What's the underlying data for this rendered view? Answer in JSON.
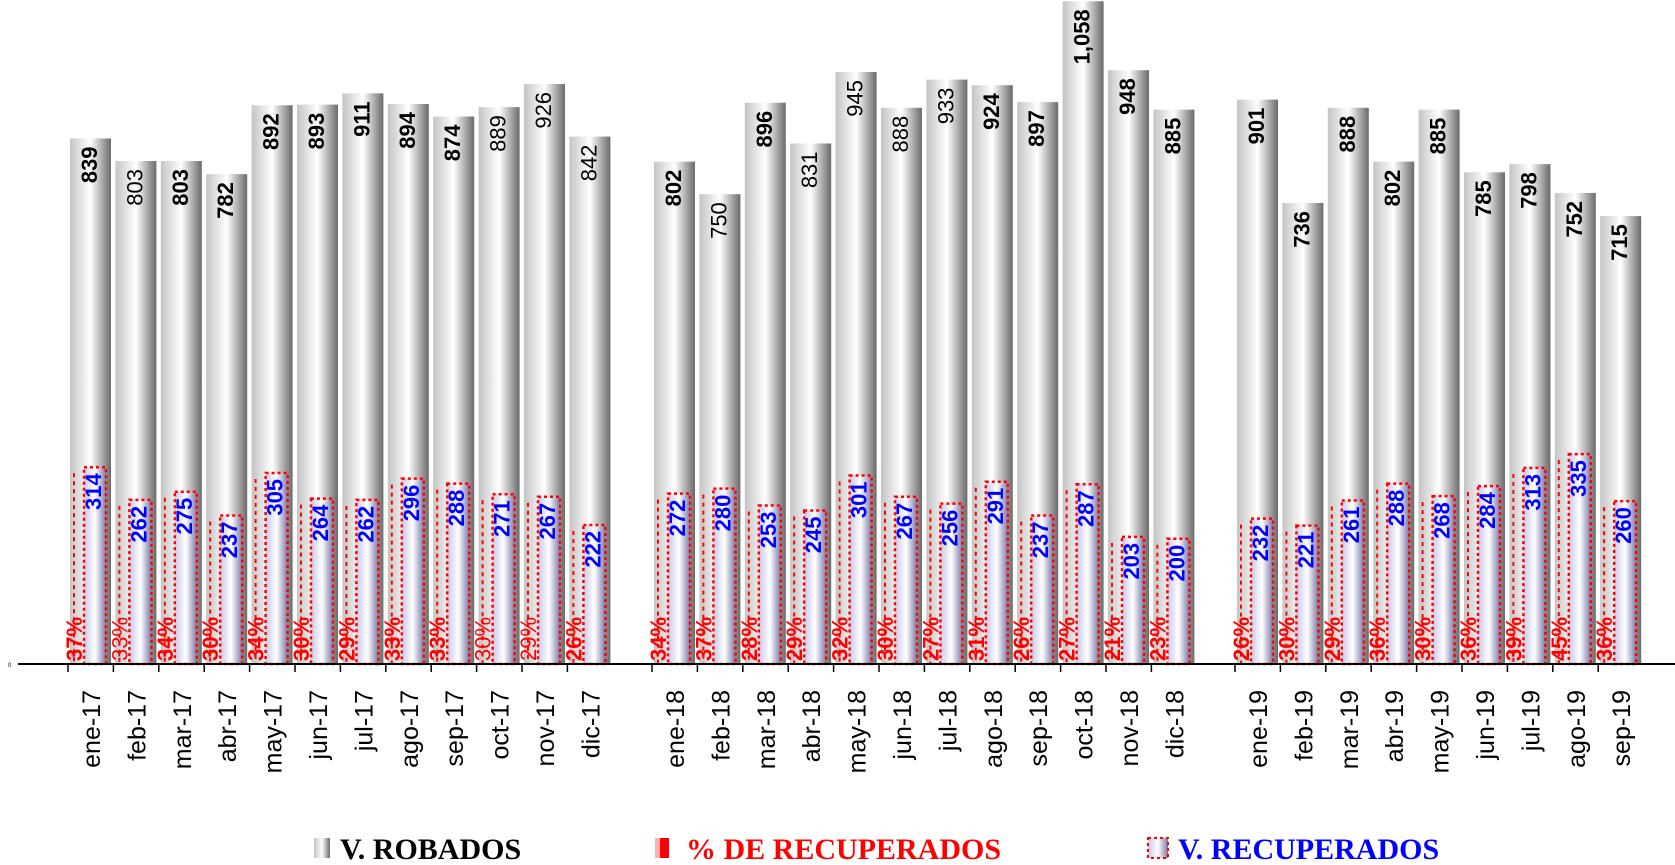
{
  "chart_data": {
    "type": "bar",
    "categories": [
      "ene-17",
      "feb-17",
      "mar-17",
      "abr-17",
      "may-17",
      "jun-17",
      "jul-17",
      "ago-17",
      "sep-17",
      "oct-17",
      "nov-17",
      "dic-17",
      "ene-18",
      "feb-18",
      "mar-18",
      "abr-18",
      "may-18",
      "jun-18",
      "jul-18",
      "ago-18",
      "sep-18",
      "oct-18",
      "nov-18",
      "dic-18",
      "ene-19",
      "feb-19",
      "mar-19",
      "abr-19",
      "may-19",
      "jun-19",
      "jul-19",
      "ago-19",
      "sep-19"
    ],
    "year_groups": [
      12,
      12,
      9
    ],
    "series": [
      {
        "name": "V. ROBADOS",
        "values": [
          839,
          803,
          803,
          782,
          892,
          893,
          911,
          894,
          874,
          889,
          926,
          842,
          802,
          750,
          896,
          831,
          945,
          888,
          933,
          924,
          897,
          1058,
          948,
          885,
          901,
          736,
          888,
          802,
          885,
          785,
          798,
          752,
          715
        ],
        "labels": [
          "839",
          "803",
          "803",
          "782",
          "892",
          "893",
          "911",
          "894",
          "874",
          "889",
          "926",
          "842",
          "802",
          "750",
          "896",
          "831",
          "945",
          "888",
          "933",
          "924",
          "897",
          "1,058",
          "948",
          "885",
          "901",
          "736",
          "888",
          "802",
          "885",
          "785",
          "798",
          "752",
          "715"
        ],
        "bold": [
          true,
          false,
          true,
          true,
          true,
          true,
          true,
          true,
          true,
          false,
          false,
          false,
          true,
          false,
          true,
          false,
          false,
          false,
          false,
          true,
          true,
          true,
          true,
          true,
          true,
          true,
          true,
          true,
          true,
          true,
          true,
          true,
          true
        ]
      },
      {
        "name": "% DE RECUPERADOS",
        "values": [
          37,
          33,
          34,
          30,
          34,
          30,
          29,
          33,
          33,
          30,
          29,
          26,
          34,
          37,
          28,
          29,
          32,
          30,
          27,
          31,
          26,
          27,
          21,
          23,
          26,
          30,
          29,
          36,
          30,
          36,
          39,
          45,
          36
        ],
        "labels": [
          "37%",
          "33%",
          "34%",
          "30%",
          "34%",
          "30%",
          "29%",
          "33%",
          "33%",
          "30%",
          "29%",
          "26%",
          "34%",
          "37%",
          "28%",
          "29%",
          "32%",
          "30%",
          "27%",
          "31%",
          "26%",
          "27%",
          "21%",
          "23%",
          "26%",
          "30%",
          "29%",
          "36%",
          "30%",
          "36%",
          "39%",
          "45%",
          "36%"
        ],
        "bold": [
          true,
          false,
          true,
          true,
          true,
          true,
          true,
          true,
          true,
          false,
          false,
          true,
          true,
          true,
          true,
          true,
          true,
          true,
          true,
          true,
          true,
          true,
          true,
          true,
          true,
          true,
          true,
          true,
          true,
          true,
          true,
          true,
          true
        ]
      },
      {
        "name": "V. RECUPERADOS",
        "values": [
          314,
          262,
          275,
          237,
          305,
          264,
          262,
          296,
          288,
          271,
          267,
          222,
          272,
          280,
          253,
          245,
          301,
          267,
          256,
          291,
          237,
          287,
          203,
          200,
          232,
          221,
          261,
          288,
          268,
          284,
          313,
          335,
          260
        ],
        "labels": [
          "314",
          "262",
          "275",
          "237",
          "305",
          "264",
          "262",
          "296",
          "288",
          "271",
          "267",
          "222",
          "272",
          "280",
          "253",
          "245",
          "301",
          "267",
          "256",
          "291",
          "237",
          "287",
          "203",
          "200",
          "232",
          "221",
          "261",
          "288",
          "268",
          "284",
          "313",
          "335",
          "260"
        ]
      }
    ],
    "y_tick_label": "0",
    "ylim": [
      0,
      1100
    ],
    "legend": "bottom",
    "grid": false,
    "colors": {
      "robados": "#8c8c8c",
      "recuperados_pct": "#ff0000",
      "recuperados": "#0000ff"
    }
  },
  "legend": {
    "robados": "V. ROBADOS",
    "pct": "% DE RECUPERADOS",
    "recuperados": "V. RECUPERADOS"
  }
}
